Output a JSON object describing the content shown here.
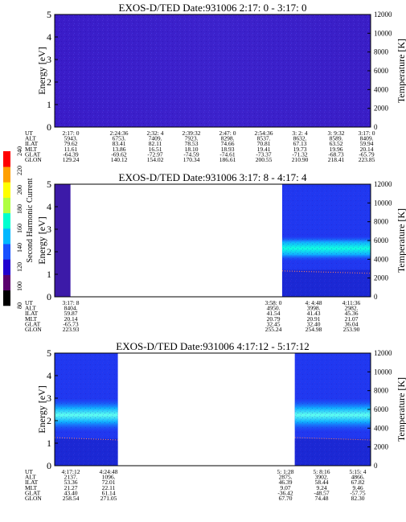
{
  "colorbar": {
    "label": "Second Harmonic Current",
    "ticks": [
      "80",
      "100",
      "120",
      "140",
      "160",
      "180",
      "200",
      "220",
      "240"
    ],
    "colors": [
      "#000000",
      "#5a006e",
      "#2000d0",
      "#1850ff",
      "#00b8ff",
      "#00ffd0",
      "#b0ff40",
      "#ffff00",
      "#ffa000",
      "#ff0000"
    ]
  },
  "chart_data": [
    {
      "type": "heatmap",
      "title": "EXOS-D/TED   Date:931006  2:17: 0 - 3:17: 0",
      "ylabel": "Energy [eV]",
      "ylabel_right": "Temperature [K]",
      "ylim": [
        0,
        5
      ],
      "ylim_right": [
        0,
        12000
      ],
      "yticks": [
        "0",
        "1",
        "2",
        "3",
        "4",
        "5"
      ],
      "yticks_right": [
        "0",
        "2000",
        "4000",
        "6000",
        "8000",
        "10000",
        "12000"
      ],
      "data_coverage": [
        [
          0.0,
          1.0
        ]
      ],
      "background_level": "low (blue/purple)",
      "orbit_table": {
        "row_labels": [
          "UT",
          "ALT",
          "ILAT",
          "MLT",
          "GLAT",
          "GLON"
        ],
        "columns": [
          [
            "2:17: 0",
            "5943.",
            "79.62",
            "11.61",
            "-64.39",
            "129.24"
          ],
          [
            "2:24:36",
            "6753.",
            "83.41",
            "13.86",
            "-69.62",
            "140.12"
          ],
          [
            "2:32: 4",
            "7409.",
            "82.11",
            "16.51",
            "-72.97",
            "154.02"
          ],
          [
            "2:39:32",
            "7923.",
            "78.53",
            "18.10",
            "-74.59",
            "170.34"
          ],
          [
            "2:47: 0",
            "8298.",
            "74.66",
            "18.93",
            "-74.61",
            "186.61"
          ],
          [
            "2:54:36",
            "8537.",
            "70.81",
            "19.41",
            "-73.37",
            "200.55"
          ],
          [
            "3: 2: 4",
            "8632.",
            "67.13",
            "19.73",
            "-71.32",
            "210.90"
          ],
          [
            "3: 9:32",
            "8589.",
            "63.52",
            "19.96",
            "-68.73",
            "218.41"
          ],
          [
            "3:17: 0",
            "8409.",
            "59.94",
            "20.14",
            "-65.79",
            "223.85"
          ]
        ]
      }
    },
    {
      "type": "heatmap",
      "title": "EXOS-D/TED   Date:931006  3:17: 8 - 4:17: 4",
      "ylabel": "Energy [eV]",
      "ylabel_right": "Temperature [K]",
      "ylim": [
        0,
        5
      ],
      "ylim_right": [
        0,
        12000
      ],
      "yticks": [
        "0",
        "1",
        "2",
        "3",
        "4",
        "5"
      ],
      "yticks_right": [
        "0",
        "2000",
        "4000",
        "6000",
        "8000",
        "10000",
        "12000"
      ],
      "data_coverage": [
        [
          0.0,
          0.05
        ],
        [
          0.72,
          1.0
        ]
      ],
      "band_energy_ev": [
        1.6,
        2.7
      ],
      "orbit_table": {
        "row_labels": [
          "UT",
          "ALT",
          "ILAT",
          "MLT",
          "GLAT",
          "GLON"
        ],
        "columns": [
          [
            "3:17: 8",
            "8404.",
            "59.87",
            "20.14",
            "-65.73",
            "223.93"
          ],
          [
            "3:58: 0",
            "4950.",
            "41.54",
            "20.79",
            "32.45",
            "255.24"
          ],
          [
            "4: 4:48",
            "3998.",
            "41.43",
            "20.91",
            "32.40",
            "254.98"
          ],
          [
            "4:11:36",
            "2982.",
            "45.36",
            "21.07",
            "36.04",
            "253.90"
          ]
        ]
      }
    },
    {
      "type": "heatmap",
      "title": "EXOS-D/TED   Date:931006  4:17:12 - 5:17:12",
      "ylabel": "Energy [eV]",
      "ylabel_right": "Temperature [K]",
      "ylim": [
        0,
        5
      ],
      "ylim_right": [
        0,
        12000
      ],
      "yticks": [
        "0",
        "1",
        "2",
        "3",
        "4",
        "5"
      ],
      "yticks_right": [
        "0",
        "2000",
        "4000",
        "6000",
        "8000",
        "10000",
        "12000"
      ],
      "data_coverage": [
        [
          0.0,
          0.2
        ],
        [
          0.76,
          1.0
        ]
      ],
      "band_energy_ev": [
        1.5,
        3.0
      ],
      "orbit_table": {
        "row_labels": [
          "UT",
          "ALT",
          "ILAT",
          "MLT",
          "GLAT",
          "GLON"
        ],
        "columns": [
          [
            "4:17:12",
            "2137.",
            "53.36",
            "21.27",
            "43.40",
            "258.54"
          ],
          [
            "4:24:48",
            "1096.",
            "72.01",
            "22.11",
            "61.14",
            "271.05"
          ],
          [
            "5: 1:28",
            "2875.",
            "46.39",
            "9.07",
            "-36.42",
            "67.70"
          ],
          [
            "5: 8:16",
            "3902.",
            "58.44",
            "9.24",
            "-48.57",
            "74.48"
          ],
          [
            "5:15: 4",
            "4866.",
            "67.82",
            "9.46",
            "-57.75",
            "82.30"
          ]
        ]
      }
    }
  ]
}
